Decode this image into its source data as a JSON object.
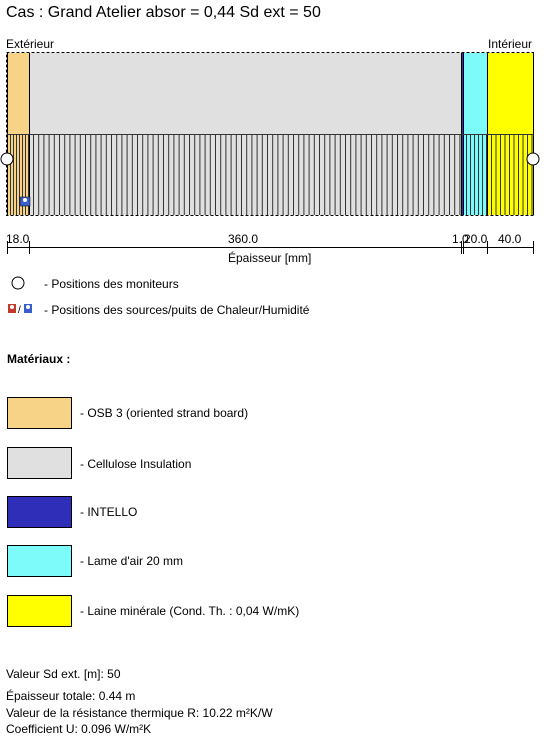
{
  "title": "Cas : Grand Atelier absor = 0,44 Sd ext = 50",
  "diagram": {
    "side_left": "Extérieur",
    "side_right": "Intérieur",
    "layers": [
      {
        "name": "OSB 3",
        "thickness_label": "18.0",
        "color": "#F6D386"
      },
      {
        "name": "Cellulose Insulation",
        "thickness_label": "360.0",
        "color": "#E0E0E0"
      },
      {
        "name": "INTELLO",
        "thickness_label": "1.0",
        "color": "#2E2EB8"
      },
      {
        "name": "Lame d'air",
        "thickness_label": "20.0",
        "color": "#7DFAFA"
      },
      {
        "name": "Laine minérale",
        "thickness_label": "40.0",
        "color": "#FFFF00"
      }
    ],
    "axis_label": "Épaisseur [mm]"
  },
  "monitor_legend": "- Positions des moniteurs",
  "source_legend": "- Positions des sources/puits de Chaleur/Humidité",
  "materials_heading": "Matériaux :",
  "materials": [
    {
      "label": "- OSB 3 (oriented strand board)",
      "color": "#F6D386"
    },
    {
      "label": "- Cellulose Insulation",
      "color": "#E0E0E0"
    },
    {
      "label": "- INTELLO",
      "color": "#2E2EB8"
    },
    {
      "label": "- Lame d'air 20 mm",
      "color": "#7DFAFA"
    },
    {
      "label": "- Laine minérale (Cond. Th. : 0,04 W/mK)",
      "color": "#FFFF00"
    }
  ],
  "footer": {
    "sd_ext": "Valeur Sd ext. [m]: 50",
    "thickness": "Épaisseur totale: 0.44 m",
    "resistance": "Valeur de la résistance thermique R: 10.22 m²K/W",
    "u_value": "Coefficient U: 0.096 W/m²K"
  }
}
